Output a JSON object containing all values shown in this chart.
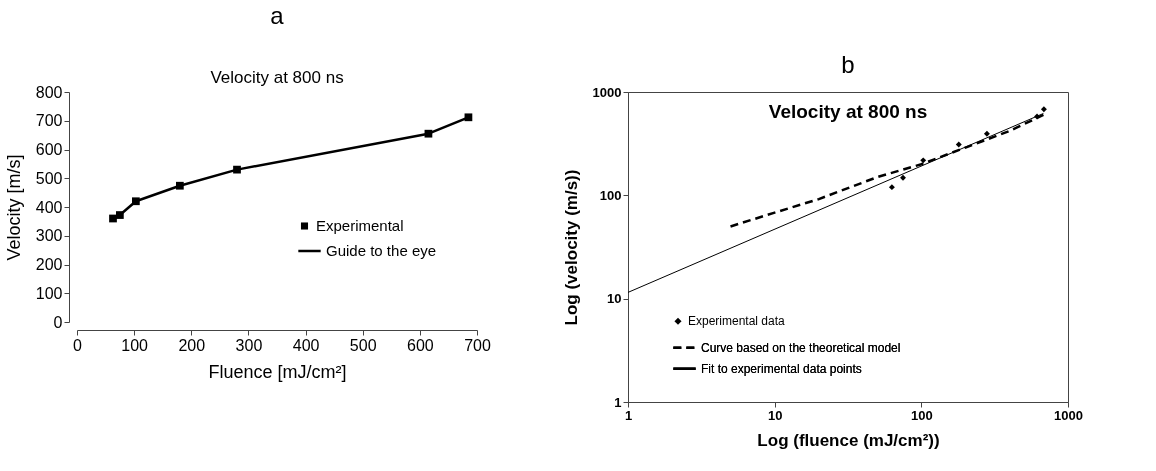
{
  "chart_data": [
    {
      "type": "line",
      "title": "a",
      "subtitle": "Velocity at 800 ns",
      "xlabel": "Fluence [mJ/cm²]",
      "ylabel": "Velocity [m/s]",
      "x": [
        63,
        75,
        103,
        180,
        280,
        615,
        685
      ],
      "series": [
        {
          "name": "Experimental",
          "type": "scatter",
          "color": "#000000",
          "marker": "square",
          "values": [
            360,
            372,
            420,
            474,
            530,
            655,
            712
          ]
        },
        {
          "name": "Guide to the eye",
          "type": "line",
          "color": "#000000",
          "line_style": "solid",
          "values": [
            360,
            372,
            420,
            474,
            530,
            655,
            712
          ]
        }
      ],
      "xlim": [
        0,
        700
      ],
      "xticks": [
        0,
        100,
        200,
        300,
        400,
        500,
        600,
        700
      ],
      "ylim": [
        0,
        800
      ],
      "yticks": [
        0,
        100,
        200,
        300,
        400,
        500,
        600,
        700,
        800
      ],
      "grid": false,
      "legend": "right"
    },
    {
      "type": "line",
      "title": "b",
      "subtitle": "Velocity at 800 ns",
      "xlabel": "Log (fluence (mJ/cm²))",
      "ylabel": "Log (velocity (m/s))",
      "series": [
        {
          "name": "Experimental data",
          "type": "scatter",
          "color": "#000000",
          "marker": "diamond",
          "x": [
            63,
            75,
            103,
            180,
            280,
            615,
            685
          ],
          "values": [
            120,
            148,
            218,
            310,
            395,
            580,
            680
          ]
        },
        {
          "name": "Curve based on the theoretical model",
          "type": "line",
          "color": "#000000",
          "line_style": "dashed",
          "x": [
            5,
            10,
            20,
            50,
            100,
            200,
            400,
            680
          ],
          "values": [
            50,
            68,
            92,
            150,
            200,
            290,
            420,
            600
          ]
        },
        {
          "name": "Fit to experimental data points",
          "type": "line",
          "color": "#000000",
          "line_style": "solid",
          "x": [
            1,
            680
          ],
          "values": [
            11.5,
            620
          ]
        }
      ],
      "xlim": [
        1,
        1000
      ],
      "xticks": [
        1,
        10,
        100,
        1000
      ],
      "ylim": [
        1,
        1000
      ],
      "yticks": [
        1,
        10,
        100,
        1000
      ],
      "log": "xy",
      "grid": false,
      "legend": "bottom"
    }
  ]
}
